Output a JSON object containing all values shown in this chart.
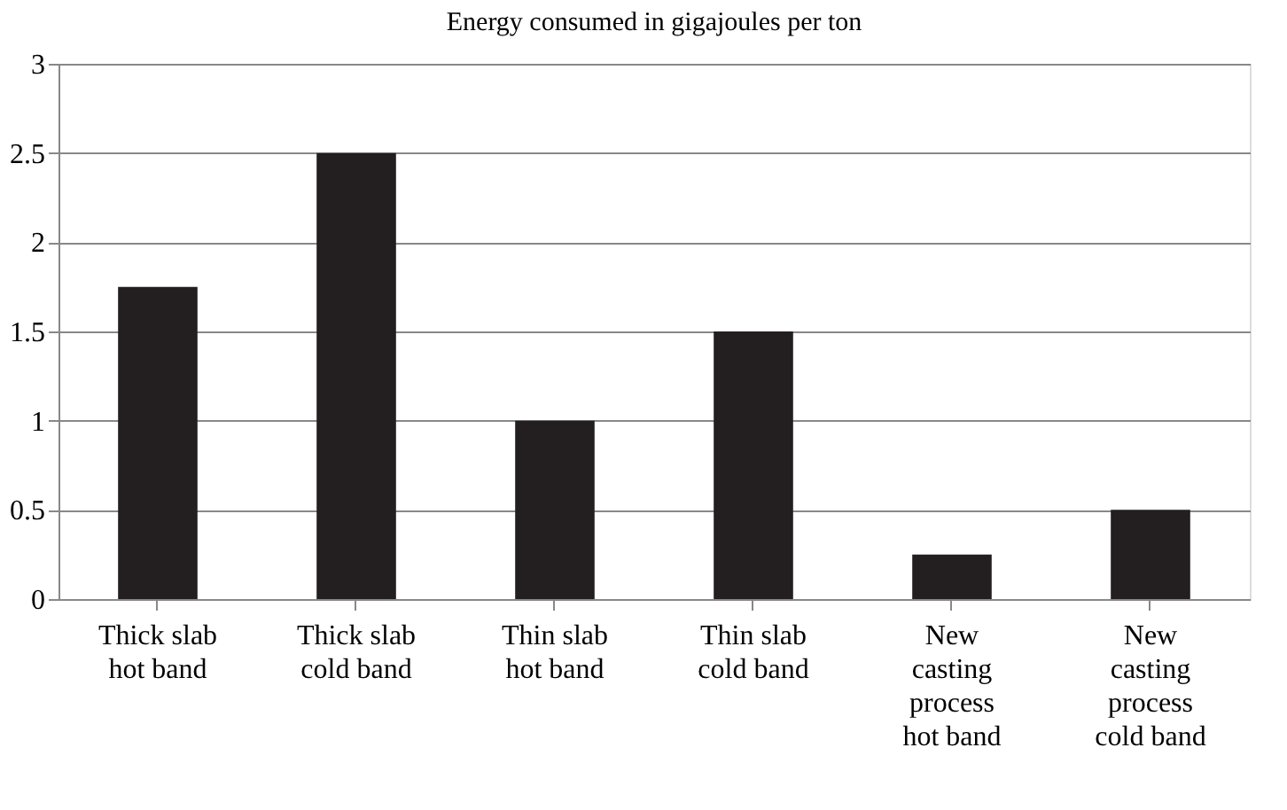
{
  "chart_data": {
    "type": "bar",
    "title": "Energy consumed in gigajoules per ton",
    "categories": [
      "Thick slab\nhot band",
      "Thick slab\ncold band",
      "Thin slab\nhot band",
      "Thin slab\ncold band",
      "New\ncasting\nprocess\nhot band",
      "New\ncasting\nprocess\ncold band"
    ],
    "values": [
      1.75,
      2.5,
      1,
      1.5,
      0.25,
      0.5
    ],
    "color": "#231f20",
    "ylim": [
      0,
      3
    ],
    "yticks": [
      0,
      0.5,
      1,
      1.5,
      2,
      2.5,
      3
    ],
    "grid": "y"
  }
}
